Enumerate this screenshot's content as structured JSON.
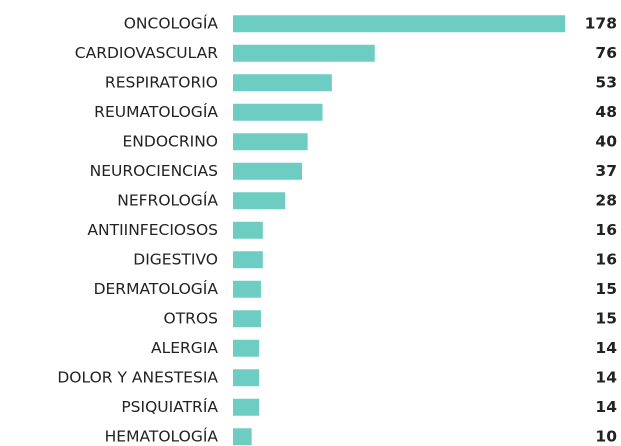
{
  "chart_data": {
    "type": "bar",
    "orientation": "horizontal",
    "categories": [
      "ONCOLOGÍA",
      "CARDIOVASCULAR",
      "RESPIRATORIO",
      "REUMATOLOGÍA",
      "ENDOCRINO",
      "NEUROCIENCIAS",
      "NEFROLOGÍA",
      "ANTIINFECIOSOS",
      "DIGESTIVO",
      "DERMATOLOGÍA",
      "OTROS",
      "ALERGIA",
      "DOLOR Y ANESTESIA",
      "PSIQUIATRÍA",
      "HEMATOLOGÍA"
    ],
    "values": [
      178,
      76,
      53,
      48,
      40,
      37,
      28,
      16,
      16,
      15,
      15,
      14,
      14,
      14,
      10
    ],
    "color": "#6dcdc3"
  }
}
